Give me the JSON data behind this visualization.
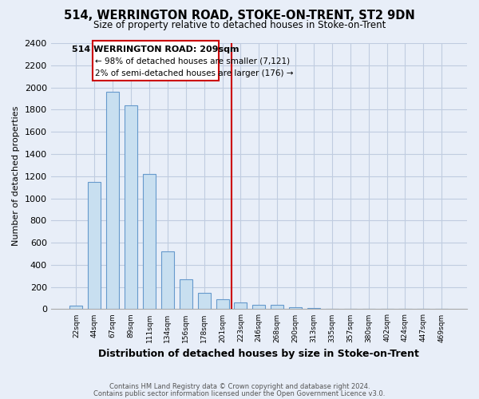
{
  "title": "514, WERRINGTON ROAD, STOKE-ON-TRENT, ST2 9DN",
  "subtitle": "Size of property relative to detached houses in Stoke-on-Trent",
  "xlabel": "Distribution of detached houses by size in Stoke-on-Trent",
  "ylabel": "Number of detached properties",
  "bar_color": "#c8dff0",
  "bar_edge_color": "#6699cc",
  "bin_labels": [
    "22sqm",
    "44sqm",
    "67sqm",
    "89sqm",
    "111sqm",
    "134sqm",
    "156sqm",
    "178sqm",
    "201sqm",
    "223sqm",
    "246sqm",
    "268sqm",
    "290sqm",
    "313sqm",
    "335sqm",
    "357sqm",
    "380sqm",
    "402sqm",
    "424sqm",
    "447sqm",
    "469sqm"
  ],
  "bar_heights": [
    30,
    1150,
    1960,
    1840,
    1220,
    520,
    270,
    150,
    90,
    60,
    40,
    40,
    15,
    10,
    5,
    5,
    3,
    2,
    2,
    1,
    1
  ],
  "vline_color": "#cc0000",
  "vline_index": 8,
  "ylim": [
    0,
    2400
  ],
  "yticks": [
    0,
    200,
    400,
    600,
    800,
    1000,
    1200,
    1400,
    1600,
    1800,
    2000,
    2200,
    2400
  ],
  "annotation_title": "514 WERRINGTON ROAD: 209sqm",
  "annotation_line1": "← 98% of detached houses are smaller (7,121)",
  "annotation_line2": "2% of semi-detached houses are larger (176) →",
  "footer1": "Contains HM Land Registry data © Crown copyright and database right 2024.",
  "footer2": "Contains public sector information licensed under the Open Government Licence v3.0.",
  "background_color": "#e8eef8",
  "plot_bg_color": "#e8eef8",
  "grid_color": "#c0cce0"
}
